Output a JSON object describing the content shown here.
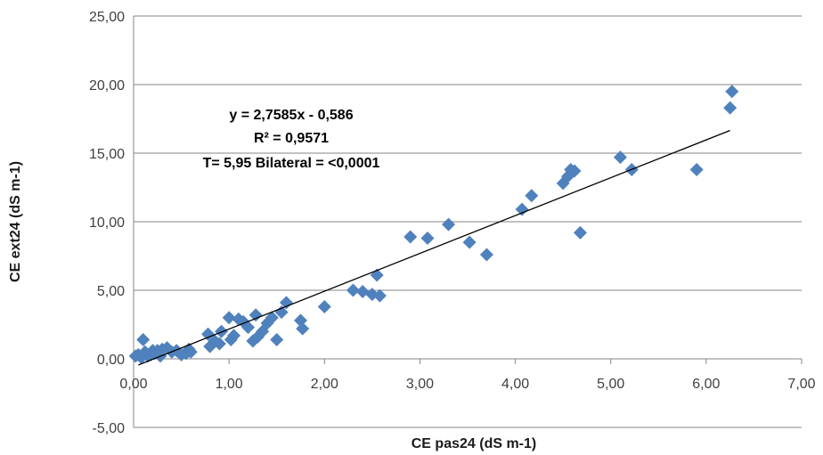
{
  "chart_data": {
    "type": "scatter",
    "xlabel": "CE pas24 (dS m-1)",
    "ylabel": "CE ext24 (dS m-1)",
    "xlim": [
      0,
      7
    ],
    "ylim": [
      -5,
      25
    ],
    "x_ticks": [
      "0,00",
      "1,00",
      "2,00",
      "3,00",
      "4,00",
      "5,00",
      "6,00",
      "7,00"
    ],
    "y_ticks": [
      "-5,00",
      "0,00",
      "5,00",
      "10,00",
      "15,00",
      "20,00",
      "25,00"
    ],
    "grid": "horizontal",
    "marker_color": "#4f81bd",
    "trendline": {
      "slope": 2.7585,
      "intercept": -0.586,
      "x_range": [
        0.05,
        6.25
      ],
      "color": "#000000"
    },
    "annotations": [
      "y = 2,7585x - 0,586",
      "R² = 0,9571",
      "T= 5,95 Bilateral = <0,0001"
    ],
    "points": [
      [
        0.02,
        0.2
      ],
      [
        0.05,
        0.3
      ],
      [
        0.08,
        0.1
      ],
      [
        0.1,
        1.4
      ],
      [
        0.12,
        0.5
      ],
      [
        0.15,
        0.2
      ],
      [
        0.18,
        0.3
      ],
      [
        0.2,
        0.6
      ],
      [
        0.22,
        0.4
      ],
      [
        0.25,
        0.6
      ],
      [
        0.28,
        0.2
      ],
      [
        0.3,
        0.7
      ],
      [
        0.35,
        0.8
      ],
      [
        0.4,
        0.5
      ],
      [
        0.45,
        0.6
      ],
      [
        0.5,
        0.3
      ],
      [
        0.55,
        0.4
      ],
      [
        0.58,
        0.7
      ],
      [
        0.6,
        0.5
      ],
      [
        0.78,
        1.8
      ],
      [
        0.8,
        0.9
      ],
      [
        0.85,
        1.3
      ],
      [
        0.9,
        1.1
      ],
      [
        0.92,
        2.0
      ],
      [
        1.0,
        3.0
      ],
      [
        1.02,
        1.4
      ],
      [
        1.05,
        1.7
      ],
      [
        1.1,
        2.9
      ],
      [
        1.15,
        2.7
      ],
      [
        1.2,
        2.3
      ],
      [
        1.25,
        1.3
      ],
      [
        1.28,
        3.2
      ],
      [
        1.3,
        1.6
      ],
      [
        1.35,
        2.0
      ],
      [
        1.4,
        2.6
      ],
      [
        1.45,
        3.0
      ],
      [
        1.5,
        1.4
      ],
      [
        1.55,
        3.4
      ],
      [
        1.6,
        4.1
      ],
      [
        1.75,
        2.8
      ],
      [
        1.77,
        2.2
      ],
      [
        2.0,
        3.8
      ],
      [
        2.3,
        5.0
      ],
      [
        2.4,
        4.9
      ],
      [
        2.5,
        4.7
      ],
      [
        2.55,
        6.1
      ],
      [
        2.58,
        4.6
      ],
      [
        2.9,
        8.9
      ],
      [
        3.08,
        8.8
      ],
      [
        3.3,
        9.8
      ],
      [
        3.52,
        8.5
      ],
      [
        3.7,
        7.6
      ],
      [
        4.07,
        10.9
      ],
      [
        4.17,
        11.9
      ],
      [
        4.5,
        12.8
      ],
      [
        4.55,
        13.3
      ],
      [
        4.58,
        13.8
      ],
      [
        4.62,
        13.7
      ],
      [
        4.68,
        9.2
      ],
      [
        5.1,
        14.7
      ],
      [
        5.22,
        13.8
      ],
      [
        5.9,
        13.8
      ],
      [
        6.25,
        18.3
      ],
      [
        6.27,
        19.5
      ]
    ]
  }
}
